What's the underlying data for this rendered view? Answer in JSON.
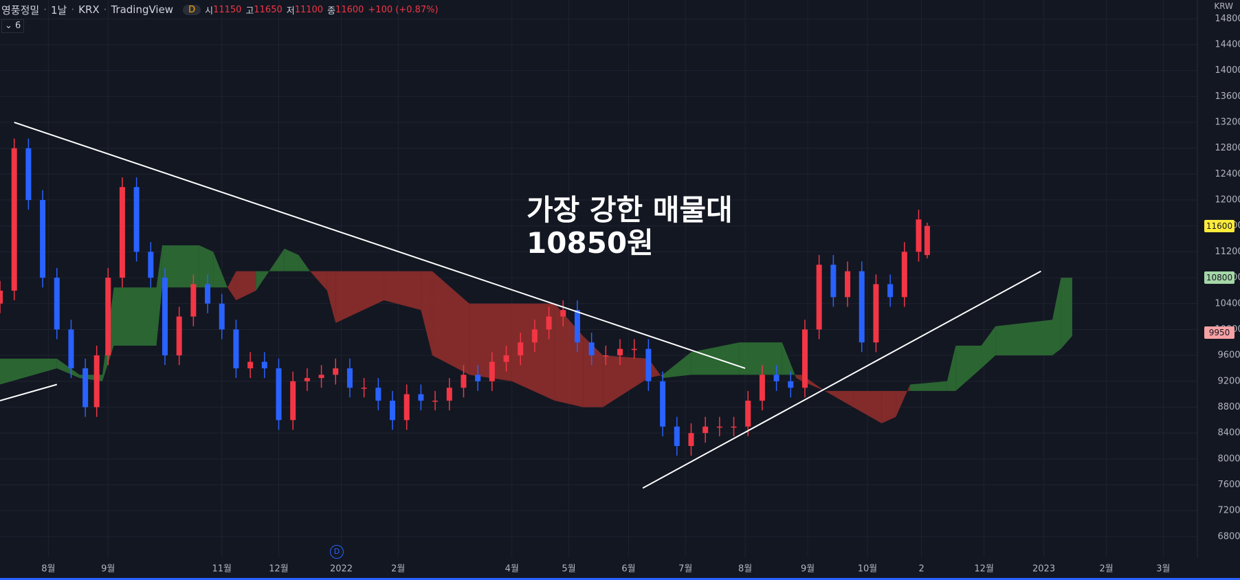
{
  "header": {
    "symbol": "영풍정밀",
    "interval": "1날",
    "exchange": "KRX",
    "source": "TradingView",
    "badge": "D",
    "open_label": "시",
    "open": 11150,
    "high_label": "고",
    "high": 11650,
    "low_label": "저",
    "low": 11100,
    "close_label": "종",
    "close": 11600,
    "change": "+100 (+0.87%)",
    "indicator_count": 6,
    "currency": "KRW",
    "event_marker": "D"
  },
  "chart_data": {
    "type": "candlestick",
    "annotation": "가장 강한 매물대\n10850원",
    "xlim": [
      0,
      421
    ],
    "ylim": [
      6480,
      15090
    ],
    "yticks": [
      6800,
      7200,
      7600,
      8000,
      8400,
      8800,
      9200,
      9600,
      10000,
      10400,
      10800,
      11200,
      11600,
      12000,
      12400,
      12800,
      13200,
      13600,
      14000,
      14400,
      14800
    ],
    "xticks": [
      {
        "value": 17,
        "label": "8월"
      },
      {
        "value": 38,
        "label": "9월"
      },
      {
        "value": 78,
        "label": "11월"
      },
      {
        "value": 98,
        "label": "12월"
      },
      {
        "value": 120,
        "label": "2022"
      },
      {
        "value": 140,
        "label": "2월"
      },
      {
        "value": 180,
        "label": "4월"
      },
      {
        "value": 200,
        "label": "5월"
      },
      {
        "value": 221,
        "label": "6월"
      },
      {
        "value": 241,
        "label": "7월"
      },
      {
        "value": 262,
        "label": "8월"
      },
      {
        "value": 284,
        "label": "9월"
      },
      {
        "value": 305,
        "label": "10월"
      },
      {
        "value": 324,
        "label": "2"
      },
      {
        "value": 346,
        "label": "12월"
      },
      {
        "value": 367,
        "label": "2023"
      },
      {
        "value": 389,
        "label": "2월"
      },
      {
        "value": 409,
        "label": "3월"
      }
    ],
    "grid": true,
    "up_color": "#f23645",
    "down_color": "#2962ff",
    "candles": [
      [
        0,
        10400,
        10750,
        10250,
        10600
      ],
      [
        5,
        10600,
        12950,
        10450,
        12800
      ],
      [
        10,
        12800,
        12950,
        11850,
        12000
      ],
      [
        15,
        12000,
        12150,
        10650,
        10800
      ],
      [
        20,
        10800,
        10950,
        9850,
        10000
      ],
      [
        25,
        10000,
        10150,
        9250,
        9400
      ],
      [
        30,
        9400,
        9550,
        8650,
        8800
      ],
      [
        34,
        8800,
        9750,
        8650,
        9600
      ],
      [
        38,
        9600,
        10950,
        9450,
        10800
      ],
      [
        43,
        10800,
        12350,
        10650,
        12200
      ],
      [
        48,
        12200,
        12350,
        11050,
        11200
      ],
      [
        53,
        11200,
        11350,
        10650,
        10800
      ],
      [
        58,
        10800,
        10950,
        9450,
        9600
      ],
      [
        63,
        9600,
        10350,
        9450,
        10200
      ],
      [
        68,
        10200,
        10850,
        10050,
        10700
      ],
      [
        73,
        10700,
        10850,
        10250,
        10400
      ],
      [
        78,
        10400,
        10550,
        9850,
        10000
      ],
      [
        83,
        10000,
        10150,
        9250,
        9400
      ],
      [
        88,
        9400,
        9650,
        9250,
        9500
      ],
      [
        93,
        9500,
        9650,
        9250,
        9400
      ],
      [
        98,
        9400,
        9550,
        8450,
        8600
      ],
      [
        103,
        8600,
        9350,
        8450,
        9200
      ],
      [
        108,
        9200,
        9400,
        9050,
        9250
      ],
      [
        113,
        9250,
        9450,
        9100,
        9300
      ],
      [
        118,
        9300,
        9550,
        9150,
        9400
      ],
      [
        123,
        9400,
        9550,
        8950,
        9100
      ],
      [
        128,
        9100,
        9250,
        8950,
        9100
      ],
      [
        133,
        9100,
        9250,
        8750,
        8900
      ],
      [
        138,
        8900,
        9050,
        8450,
        8600
      ],
      [
        143,
        8600,
        9150,
        8450,
        9000
      ],
      [
        148,
        9000,
        9150,
        8750,
        8900
      ],
      [
        153,
        8900,
        9050,
        8750,
        8900
      ],
      [
        158,
        8900,
        9250,
        8750,
        9100
      ],
      [
        163,
        9100,
        9450,
        8950,
        9300
      ],
      [
        168,
        9300,
        9450,
        9050,
        9200
      ],
      [
        173,
        9200,
        9650,
        9050,
        9500
      ],
      [
        178,
        9500,
        9750,
        9350,
        9600
      ],
      [
        183,
        9600,
        9950,
        9450,
        9800
      ],
      [
        188,
        9800,
        10150,
        9650,
        10000
      ],
      [
        193,
        10000,
        10350,
        9850,
        10200
      ],
      [
        198,
        10200,
        10450,
        10050,
        10300
      ],
      [
        203,
        10300,
        10450,
        9650,
        9800
      ],
      [
        208,
        9800,
        9950,
        9450,
        9600
      ],
      [
        213,
        9600,
        9750,
        9450,
        9600
      ],
      [
        218,
        9600,
        9850,
        9450,
        9700
      ],
      [
        223,
        9700,
        9850,
        9550,
        9700
      ],
      [
        228,
        9700,
        9850,
        9050,
        9200
      ],
      [
        233,
        9200,
        9350,
        8350,
        8500
      ],
      [
        238,
        8500,
        8650,
        8050,
        8200
      ],
      [
        243,
        8200,
        8550,
        8050,
        8400
      ],
      [
        248,
        8400,
        8650,
        8250,
        8500
      ],
      [
        253,
        8500,
        8650,
        8350,
        8500
      ],
      [
        258,
        8500,
        8650,
        8350,
        8500
      ],
      [
        263,
        8500,
        9050,
        8350,
        8900
      ],
      [
        268,
        8900,
        9450,
        8750,
        9300
      ],
      [
        273,
        9300,
        9450,
        9050,
        9200
      ],
      [
        278,
        9200,
        9350,
        8950,
        9100
      ],
      [
        283,
        9100,
        10150,
        8950,
        10000
      ],
      [
        288,
        10000,
        11150,
        9850,
        11000
      ],
      [
        293,
        11000,
        11150,
        10350,
        10500
      ],
      [
        298,
        10500,
        11050,
        10350,
        10900
      ],
      [
        303,
        10900,
        11050,
        9650,
        9800
      ],
      [
        308,
        9800,
        10850,
        9650,
        10700
      ],
      [
        313,
        10700,
        10850,
        10350,
        10500
      ],
      [
        318,
        10500,
        11350,
        10350,
        11200
      ],
      [
        323,
        11200,
        11850,
        11050,
        11700
      ],
      [
        326,
        11150,
        11650,
        11100,
        11600
      ]
    ],
    "cloud": {
      "bull_color": "#2f6e34",
      "bear_color": "#8f2d2b",
      "x": [
        0,
        20,
        28,
        36,
        40,
        55,
        57,
        70,
        75,
        80,
        83,
        90,
        100,
        105,
        109,
        115,
        118,
        135,
        148,
        152,
        165,
        180,
        195,
        205,
        212,
        228,
        233,
        243,
        260,
        275,
        280,
        282,
        290,
        300,
        310,
        315,
        320,
        333,
        336,
        345,
        350,
        370,
        373,
        377
      ],
      "span_a": [
        9550,
        9550,
        9300,
        9300,
        10650,
        10650,
        11300,
        11300,
        11200,
        10650,
        10450,
        10600,
        11250,
        11150,
        10900,
        10600,
        10100,
        10450,
        10300,
        9600,
        9300,
        9200,
        8900,
        8800,
        8800,
        9250,
        9300,
        9650,
        9800,
        9800,
        9250,
        9200,
        9050,
        8800,
        8550,
        8650,
        9150,
        9200,
        9750,
        9750,
        10050,
        10150,
        10800,
        10800
      ],
      "span_b": [
        9150,
        9400,
        9250,
        9200,
        9750,
        9750,
        10650,
        10650,
        10650,
        10650,
        10900,
        10900,
        10900,
        10900,
        10900,
        10900,
        10900,
        10900,
        10900,
        10900,
        10400,
        10400,
        10400,
        9900,
        9600,
        9550,
        9250,
        9300,
        9300,
        9300,
        9300,
        9300,
        9050,
        9050,
        9050,
        9050,
        9050,
        9050,
        9050,
        9400,
        9600,
        9600,
        9700,
        9900
      ]
    },
    "trend_lines": [
      {
        "x": [
          5,
          262
        ],
        "y": [
          13200,
          9400
        ]
      },
      {
        "x": [
          0,
          20
        ],
        "y": [
          8900,
          9150
        ]
      },
      {
        "x": [
          226,
          366
        ],
        "y": [
          7550,
          10900
        ]
      }
    ],
    "price_labels": [
      {
        "value": 11600,
        "color": "#ffeb3b"
      },
      {
        "value": 10800,
        "color": "#a5d6a7"
      },
      {
        "value": 9950,
        "color": "#f7a1a4"
      }
    ]
  }
}
